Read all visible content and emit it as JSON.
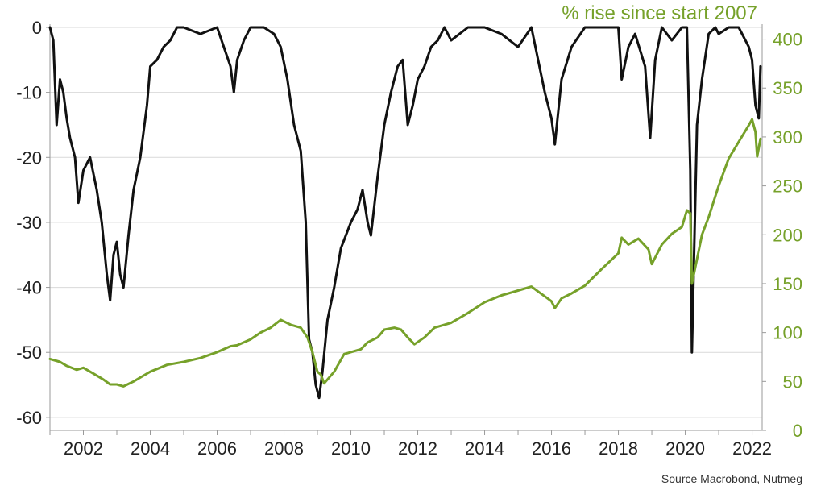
{
  "colors": {
    "series_black": "#111111",
    "series_green": "#76a12a",
    "grid": "#d9d9d9",
    "axis": "#9a9a9a"
  },
  "source_text": "Source Macrobond, Nutmeg",
  "chart_data": {
    "type": "line",
    "title": "",
    "right_axis_title": "% rise since start 2007",
    "x_ticks": [
      "2002",
      "2004",
      "2006",
      "2008",
      "2010",
      "2012",
      "2014",
      "2016",
      "2018",
      "2020",
      "2022"
    ],
    "xlim": [
      2001.0,
      2022.3
    ],
    "y_left_ticks": [
      "0",
      "-10",
      "-20",
      "-30",
      "-40",
      "-50",
      "-60"
    ],
    "y_left_lim": [
      -62,
      0
    ],
    "y_right_ticks": [
      "400",
      "350",
      "300",
      "250",
      "200",
      "150",
      "100",
      "50",
      "0"
    ],
    "y_right_lim": [
      0,
      412
    ],
    "grid": "horizontal",
    "series": [
      {
        "axis": "left",
        "color": "#111111",
        "x": [
          2001.0,
          2001.1,
          2001.2,
          2001.3,
          2001.4,
          2001.5,
          2001.6,
          2001.75,
          2001.85,
          2002.0,
          2002.2,
          2002.4,
          2002.55,
          2002.7,
          2002.8,
          2002.9,
          2003.0,
          2003.1,
          2003.2,
          2003.35,
          2003.5,
          2003.7,
          2003.9,
          2004.0,
          2004.2,
          2004.4,
          2004.6,
          2004.8,
          2005.0,
          2005.5,
          2006.0,
          2006.4,
          2006.5,
          2006.6,
          2006.8,
          2007.0,
          2007.4,
          2007.7,
          2007.9,
          2008.1,
          2008.3,
          2008.5,
          2008.65,
          2008.75,
          2008.85,
          2008.95,
          2009.05,
          2009.15,
          2009.3,
          2009.5,
          2009.7,
          2010.0,
          2010.2,
          2010.35,
          2010.5,
          2010.6,
          2010.8,
          2011.0,
          2011.2,
          2011.4,
          2011.55,
          2011.7,
          2011.85,
          2012.0,
          2012.2,
          2012.4,
          2012.6,
          2012.8,
          2013.0,
          2013.5,
          2014.0,
          2014.5,
          2015.0,
          2015.4,
          2015.6,
          2015.8,
          2016.0,
          2016.1,
          2016.3,
          2016.6,
          2017.0,
          2017.5,
          2018.0,
          2018.1,
          2018.3,
          2018.5,
          2018.8,
          2018.95,
          2019.1,
          2019.3,
          2019.6,
          2019.9,
          2020.05,
          2020.15,
          2020.2,
          2020.35,
          2020.5,
          2020.7,
          2020.9,
          2021.0,
          2021.3,
          2021.6,
          2021.9,
          2022.0,
          2022.1,
          2022.2,
          2022.25
        ],
        "y": [
          0,
          -2,
          -15,
          -8,
          -10,
          -14,
          -17,
          -20,
          -27,
          -22,
          -20,
          -25,
          -30,
          -38,
          -42,
          -35,
          -33,
          -38,
          -40,
          -32,
          -25,
          -20,
          -12,
          -6,
          -5,
          -3,
          -2,
          0,
          0,
          -1,
          0,
          -6,
          -10,
          -5,
          -2,
          0,
          0,
          -1,
          -3,
          -8,
          -15,
          -19,
          -30,
          -48,
          -50,
          -55,
          -57,
          -53,
          -45,
          -40,
          -34,
          -30,
          -28,
          -25,
          -30,
          -32,
          -23,
          -15,
          -10,
          -6,
          -5,
          -15,
          -12,
          -8,
          -6,
          -3,
          -2,
          0,
          -2,
          0,
          0,
          -1,
          -3,
          0,
          -5,
          -10,
          -14,
          -18,
          -8,
          -3,
          0,
          0,
          0,
          -8,
          -3,
          -1,
          -6,
          -17,
          -5,
          0,
          -2,
          0,
          0,
          -22,
          -50,
          -15,
          -8,
          -1,
          0,
          -1,
          0,
          0,
          -3,
          -5,
          -12,
          -14,
          -6
        ]
      },
      {
        "axis": "right",
        "color": "#76a12a",
        "x": [
          2001.0,
          2001.3,
          2001.5,
          2001.8,
          2002.0,
          2002.3,
          2002.6,
          2002.8,
          2003.0,
          2003.2,
          2003.5,
          2003.8,
          2004.0,
          2004.5,
          2005.0,
          2005.5,
          2006.0,
          2006.4,
          2006.6,
          2007.0,
          2007.3,
          2007.6,
          2007.9,
          2008.2,
          2008.5,
          2008.7,
          2008.85,
          2009.0,
          2009.1,
          2009.2,
          2009.5,
          2009.8,
          2010.0,
          2010.3,
          2010.5,
          2010.8,
          2011.0,
          2011.3,
          2011.5,
          2011.7,
          2011.9,
          2012.2,
          2012.5,
          2012.8,
          2013.0,
          2013.5,
          2014.0,
          2014.5,
          2015.0,
          2015.4,
          2015.6,
          2015.8,
          2016.0,
          2016.1,
          2016.3,
          2016.6,
          2017.0,
          2017.5,
          2018.0,
          2018.1,
          2018.3,
          2018.6,
          2018.9,
          2019.0,
          2019.3,
          2019.6,
          2019.9,
          2020.05,
          2020.15,
          2020.2,
          2020.35,
          2020.5,
          2020.7,
          2021.0,
          2021.3,
          2021.6,
          2021.9,
          2022.0,
          2022.1,
          2022.15,
          2022.25
        ],
        "y": [
          73,
          70,
          66,
          62,
          64,
          58,
          52,
          47,
          47,
          45,
          50,
          56,
          60,
          67,
          70,
          74,
          80,
          86,
          87,
          93,
          100,
          105,
          113,
          108,
          105,
          95,
          80,
          60,
          57,
          48,
          60,
          78,
          80,
          83,
          90,
          95,
          103,
          105,
          103,
          95,
          88,
          95,
          105,
          108,
          110,
          120,
          131,
          138,
          143,
          147,
          142,
          137,
          132,
          125,
          135,
          140,
          148,
          165,
          181,
          197,
          190,
          196,
          185,
          170,
          190,
          201,
          208,
          225,
          222,
          150,
          175,
          200,
          218,
          250,
          278,
          295,
          312,
          318,
          305,
          280,
          298
        ]
      }
    ]
  }
}
